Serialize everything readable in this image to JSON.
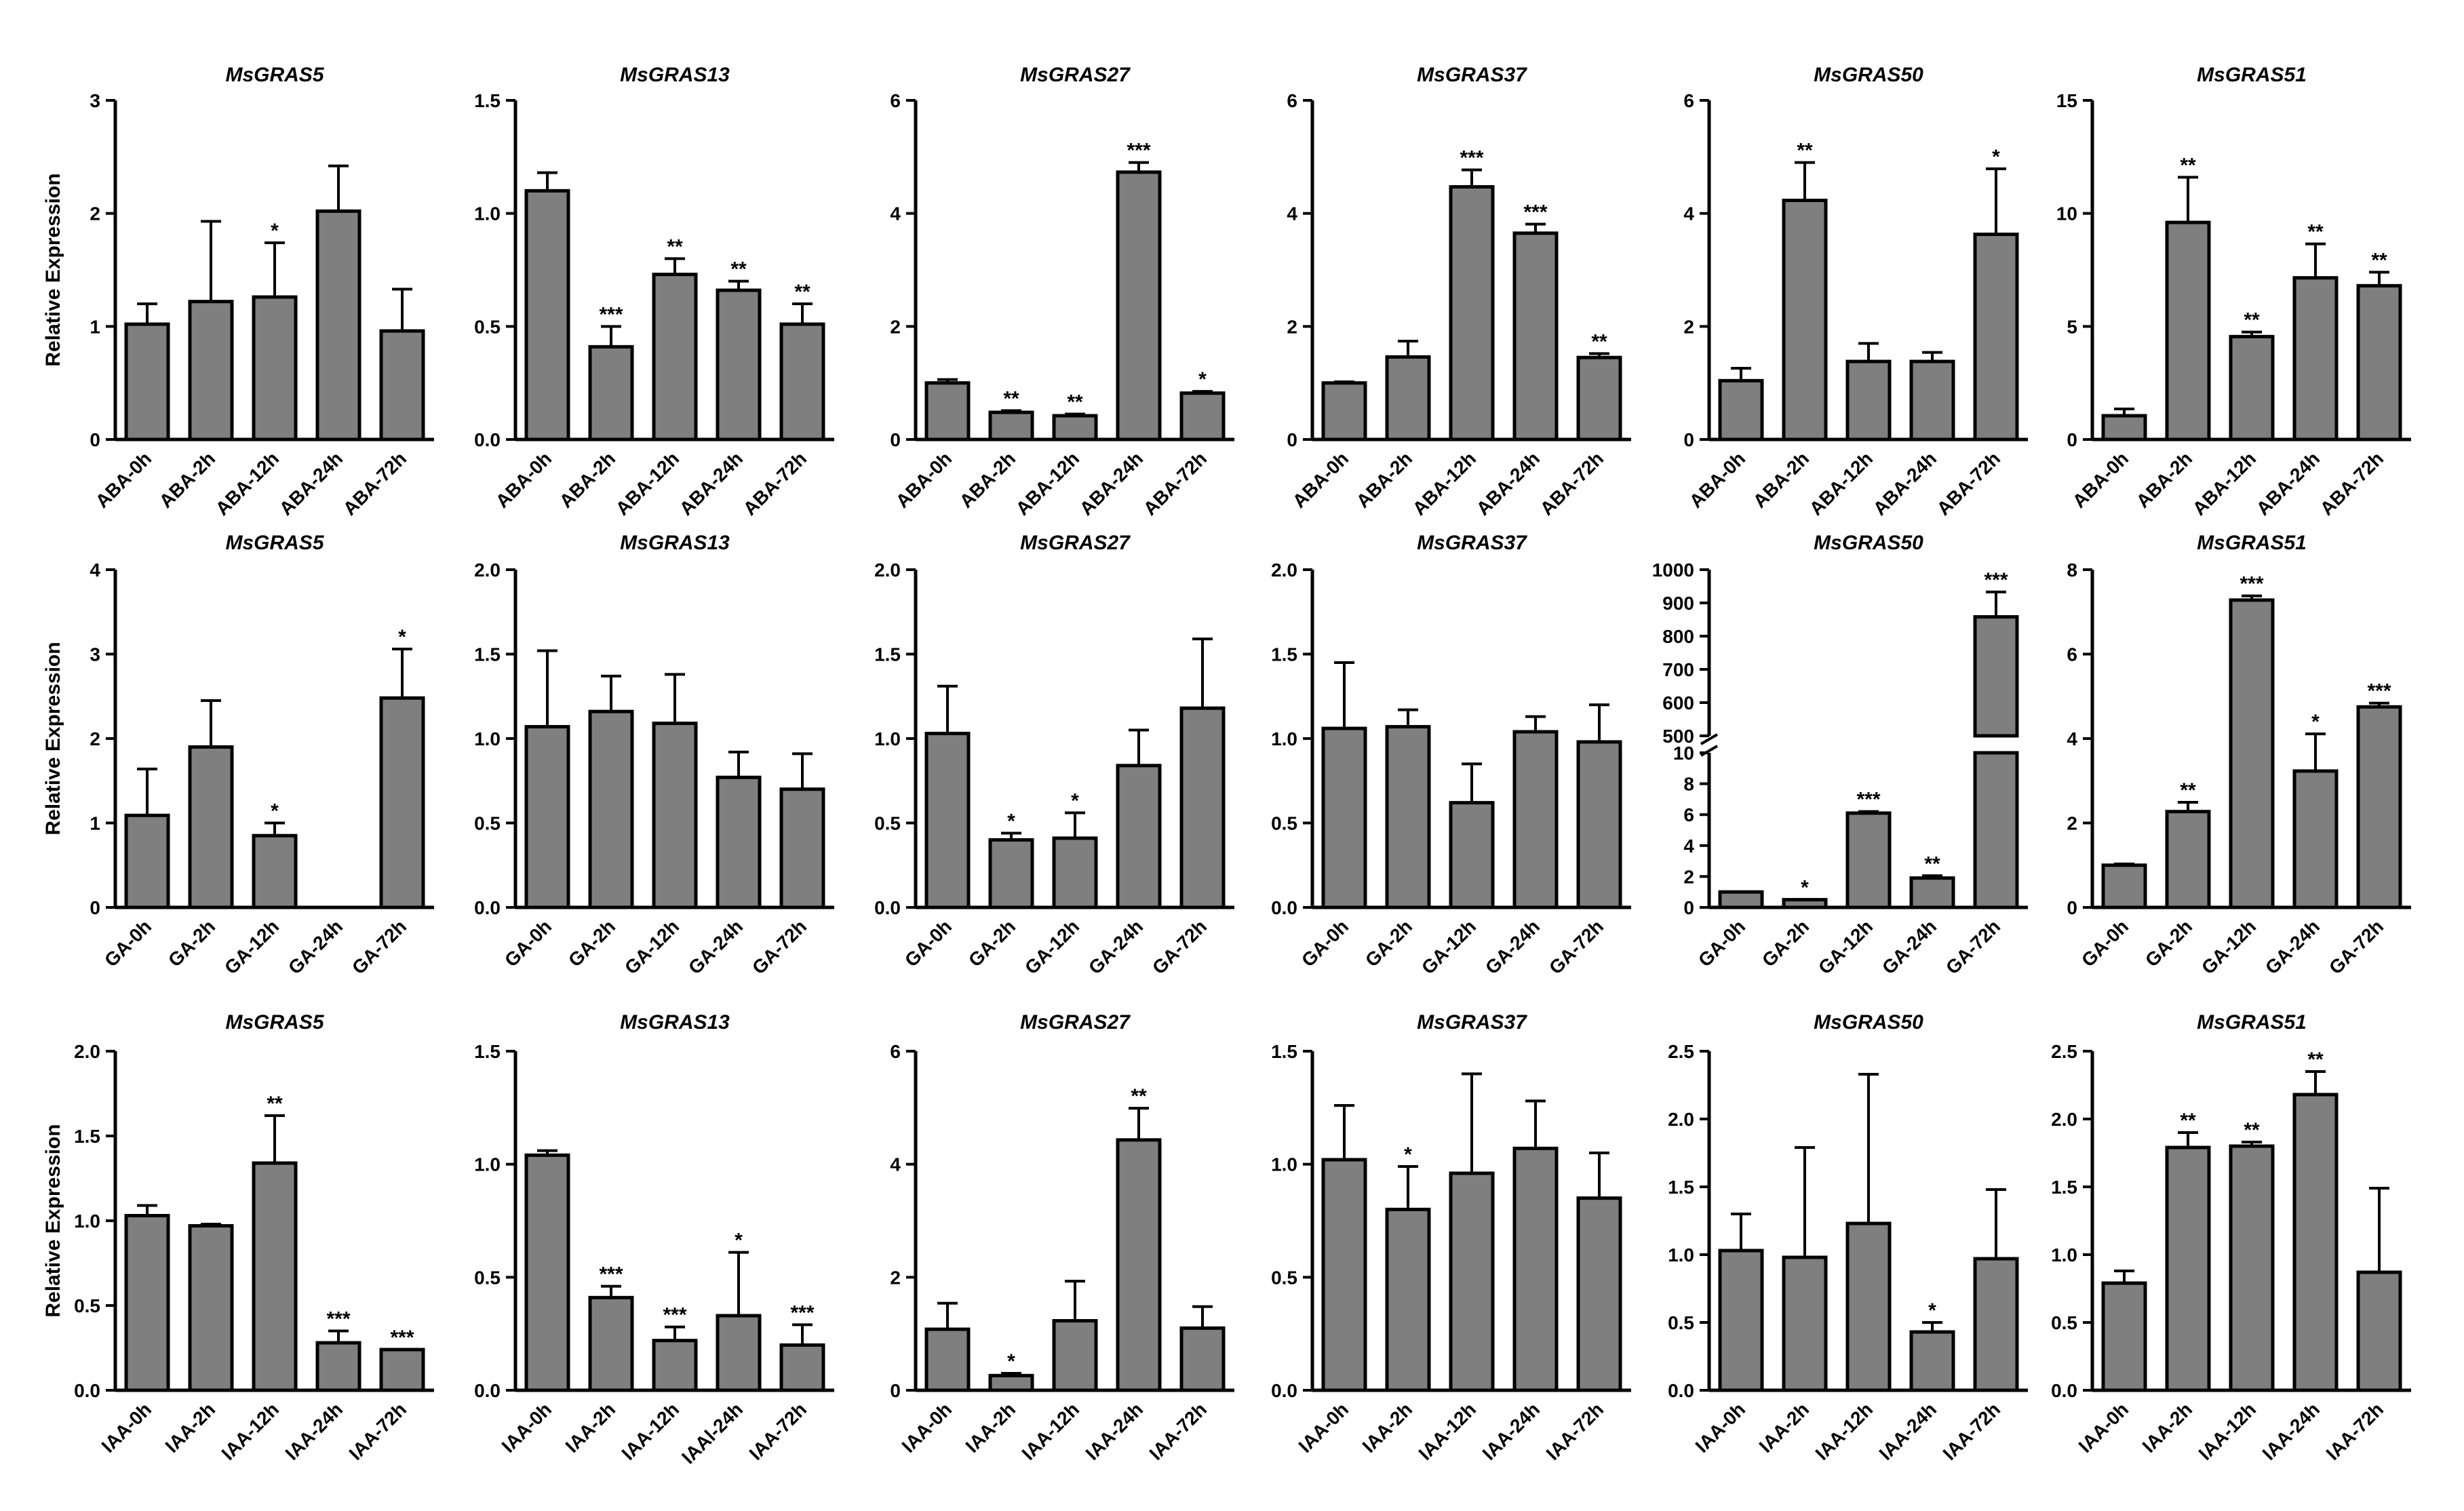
{
  "figure": {
    "ylabel": "Relative Expression"
  },
  "colors": {
    "bar_fill": "#7f7f7f",
    "bar_stroke": "#000000",
    "axis": "#000000",
    "text": "#000000"
  },
  "chart_data": [
    {
      "type": "bar",
      "row": 0,
      "col": 0,
      "title": "MsGRAS5",
      "ylabel": "Relative Expression",
      "categories": [
        "ABA-0h",
        "ABA-2h",
        "ABA-12h",
        "ABA-24h",
        "ABA-72h"
      ],
      "values": [
        1.02,
        1.22,
        1.26,
        2.02,
        0.96
      ],
      "errors": [
        0.18,
        0.71,
        0.48,
        0.4,
        0.37
      ],
      "significance": [
        "",
        "",
        "*",
        "",
        ""
      ],
      "ylim": [
        0,
        3
      ],
      "yticks": [
        "0",
        "1",
        "2",
        "3"
      ]
    },
    {
      "type": "bar",
      "row": 0,
      "col": 1,
      "title": "MsGRAS13",
      "ylabel": "",
      "categories": [
        "ABA-0h",
        "ABA-2h",
        "ABA-12h",
        "ABA-24h",
        "ABA-72h"
      ],
      "values": [
        1.1,
        0.41,
        0.73,
        0.66,
        0.51
      ],
      "errors": [
        0.08,
        0.09,
        0.07,
        0.04,
        0.09
      ],
      "significance": [
        "",
        "***",
        "**",
        "**",
        "**"
      ],
      "ylim": [
        0,
        1.5
      ],
      "yticks": [
        "0.0",
        "0.5",
        "1.0",
        "1.5"
      ]
    },
    {
      "type": "bar",
      "row": 0,
      "col": 2,
      "title": "MsGRAS27",
      "ylabel": "",
      "categories": [
        "ABA-0h",
        "ABA-2h",
        "ABA-12h",
        "ABA-24h",
        "ABA-72h"
      ],
      "values": [
        1.0,
        0.48,
        0.42,
        4.73,
        0.82
      ],
      "errors": [
        0.06,
        0.03,
        0.03,
        0.17,
        0.03
      ],
      "significance": [
        "",
        "**",
        "**",
        "***",
        "*"
      ],
      "ylim": [
        0,
        6
      ],
      "yticks": [
        "0",
        "2",
        "4",
        "6"
      ]
    },
    {
      "type": "bar",
      "row": 0,
      "col": 3,
      "title": "MsGRAS37",
      "ylabel": "",
      "categories": [
        "ABA-0h",
        "ABA-2h",
        "ABA-12h",
        "ABA-24h",
        "ABA-72h"
      ],
      "values": [
        1.0,
        1.46,
        4.47,
        3.65,
        1.45
      ],
      "errors": [
        0.02,
        0.28,
        0.3,
        0.16,
        0.07
      ],
      "significance": [
        "",
        "",
        "***",
        "***",
        "**"
      ],
      "ylim": [
        0,
        6
      ],
      "yticks": [
        "0",
        "2",
        "4",
        "6"
      ]
    },
    {
      "type": "bar",
      "row": 0,
      "col": 4,
      "title": "MsGRAS50",
      "ylabel": "",
      "categories": [
        "ABA-0h",
        "ABA-2h",
        "ABA-12h",
        "ABA-24h",
        "ABA-72h"
      ],
      "values": [
        1.04,
        4.23,
        1.38,
        1.38,
        3.63
      ],
      "errors": [
        0.22,
        0.67,
        0.32,
        0.16,
        1.16
      ],
      "significance": [
        "",
        "**",
        "",
        "",
        "*"
      ],
      "ylim": [
        0,
        6
      ],
      "yticks": [
        "0",
        "2",
        "4",
        "6"
      ]
    },
    {
      "type": "bar",
      "row": 0,
      "col": 5,
      "title": "MsGRAS51",
      "ylabel": "",
      "categories": [
        "ABA-0h",
        "ABA-2h",
        "ABA-12h",
        "ABA-24h",
        "ABA-72h"
      ],
      "values": [
        1.05,
        9.6,
        4.55,
        7.15,
        6.8
      ],
      "errors": [
        0.3,
        2.0,
        0.2,
        1.5,
        0.6
      ],
      "significance": [
        "",
        "**",
        "**",
        "**",
        "**"
      ],
      "ylim": [
        0,
        15
      ],
      "yticks": [
        "0",
        "5",
        "10",
        "15"
      ]
    },
    {
      "type": "bar",
      "row": 1,
      "col": 0,
      "title": "MsGRAS5",
      "ylabel": "Relative Expression",
      "categories": [
        "GA-0h",
        "GA-2h",
        "GA-12h",
        "GA-24h",
        "GA-72h"
      ],
      "values": [
        1.09,
        1.9,
        0.85,
        0,
        2.48
      ],
      "errors": [
        0.55,
        0.55,
        0.15,
        0,
        0.58
      ],
      "significance": [
        "",
        "",
        "*",
        "",
        "*"
      ],
      "ylim": [
        0,
        4
      ],
      "yticks": [
        "0",
        "1",
        "2",
        "3",
        "4"
      ]
    },
    {
      "type": "bar",
      "row": 1,
      "col": 1,
      "title": "MsGRAS13",
      "ylabel": "",
      "categories": [
        "GA-0h",
        "GA-2h",
        "GA-12h",
        "GA-24h",
        "GA-72h"
      ],
      "values": [
        1.07,
        1.16,
        1.09,
        0.77,
        0.7
      ],
      "errors": [
        0.45,
        0.21,
        0.29,
        0.15,
        0.21
      ],
      "significance": [
        "",
        "",
        "",
        "",
        ""
      ],
      "ylim": [
        0,
        2
      ],
      "yticks": [
        "0.0",
        "0.5",
        "1.0",
        "1.5",
        "2.0"
      ]
    },
    {
      "type": "bar",
      "row": 1,
      "col": 2,
      "title": "MsGRAS27",
      "ylabel": "",
      "categories": [
        "GA-0h",
        "GA-2h",
        "GA-12h",
        "GA-24h",
        "GA-72h"
      ],
      "values": [
        1.03,
        0.4,
        0.41,
        0.84,
        1.18
      ],
      "errors": [
        0.28,
        0.04,
        0.15,
        0.21,
        0.41
      ],
      "significance": [
        "",
        "*",
        "*",
        "",
        ""
      ],
      "ylim": [
        0,
        2
      ],
      "yticks": [
        "0.0",
        "0.5",
        "1.0",
        "1.5",
        "2.0"
      ]
    },
    {
      "type": "bar",
      "row": 1,
      "col": 3,
      "title": "MsGRAS37",
      "ylabel": "",
      "categories": [
        "GA-0h",
        "GA-2h",
        "GA-12h",
        "GA-24h",
        "GA-72h"
      ],
      "values": [
        1.06,
        1.07,
        0.62,
        1.04,
        0.98
      ],
      "errors": [
        0.39,
        0.1,
        0.23,
        0.09,
        0.22
      ],
      "significance": [
        "",
        "",
        "",
        "",
        ""
      ],
      "ylim": [
        0,
        2
      ],
      "yticks": [
        "0.0",
        "0.5",
        "1.0",
        "1.5",
        "2.0"
      ]
    },
    {
      "type": "bar",
      "row": 1,
      "col": 4,
      "title": "MsGRAS50",
      "ylabel": "",
      "broken_axis": true,
      "categories": [
        "GA-0h",
        "GA-2h",
        "GA-12h",
        "GA-24h",
        "GA-72h"
      ],
      "values": [
        1.0,
        0.5,
        6.1,
        1.9,
        858
      ],
      "errors": [
        0,
        0,
        0.1,
        0.15,
        75
      ],
      "significance": [
        "",
        "*",
        "***",
        "**",
        "***"
      ],
      "lower_ylim": [
        0,
        10
      ],
      "lower_yticks": [
        "0",
        "2",
        "4",
        "6",
        "8",
        "10"
      ],
      "upper_ylim": [
        500,
        1000
      ],
      "upper_yticks": [
        "500",
        "600",
        "700",
        "800",
        "900",
        "1000"
      ]
    },
    {
      "type": "bar",
      "row": 1,
      "col": 5,
      "title": "MsGRAS51",
      "ylabel": "",
      "categories": [
        "GA-0h",
        "GA-2h",
        "GA-12h",
        "GA-24h",
        "GA-72h"
      ],
      "values": [
        1.0,
        2.27,
        7.28,
        3.23,
        4.75
      ],
      "errors": [
        0.03,
        0.22,
        0.1,
        0.88,
        0.09
      ],
      "significance": [
        "",
        "**",
        "***",
        "*",
        "***"
      ],
      "ylim": [
        0,
        8
      ],
      "yticks": [
        "0",
        "2",
        "4",
        "6",
        "8"
      ]
    },
    {
      "type": "bar",
      "row": 2,
      "col": 0,
      "title": "MsGRAS5",
      "ylabel": "Relative Expression",
      "categories": [
        "IAA-0h",
        "IAA-2h",
        "IAA-12h",
        "IAA-24h",
        "IAA-72h"
      ],
      "values": [
        1.03,
        0.97,
        1.34,
        0.28,
        0.24
      ],
      "errors": [
        0.06,
        0.01,
        0.28,
        0.07,
        0
      ],
      "significance": [
        "",
        "",
        "**",
        "***",
        "***"
      ],
      "ylim": [
        0,
        2
      ],
      "yticks": [
        "0.0",
        "0.5",
        "1.0",
        "1.5",
        "2.0"
      ]
    },
    {
      "type": "bar",
      "row": 2,
      "col": 1,
      "title": "MsGRAS13",
      "ylabel": "",
      "categories": [
        "IAA-0h",
        "IAA-2h",
        "IAA-12h",
        "IAAl-24h",
        "IAA-72h"
      ],
      "values": [
        1.04,
        0.41,
        0.22,
        0.33,
        0.2
      ],
      "errors": [
        0.02,
        0.05,
        0.06,
        0.28,
        0.09
      ],
      "significance": [
        "",
        "***",
        "***",
        "*",
        "***"
      ],
      "ylim": [
        0,
        1.5
      ],
      "yticks": [
        "0.0",
        "0.5",
        "1.0",
        "1.5"
      ]
    },
    {
      "type": "bar",
      "row": 2,
      "col": 2,
      "title": "MsGRAS27",
      "ylabel": "",
      "categories": [
        "IAA-0h",
        "IAA-2h",
        "IAA-12h",
        "IAA-24h",
        "IAA-72h"
      ],
      "values": [
        1.08,
        0.26,
        1.23,
        4.43,
        1.1
      ],
      "errors": [
        0.46,
        0.04,
        0.7,
        0.56,
        0.38
      ],
      "significance": [
        "",
        "*",
        "",
        "**",
        ""
      ],
      "ylim": [
        0,
        6
      ],
      "yticks": [
        "0",
        "2",
        "4",
        "6"
      ]
    },
    {
      "type": "bar",
      "row": 2,
      "col": 3,
      "title": "MsGRAS37",
      "ylabel": "",
      "categories": [
        "IAA-0h",
        "IAA-2h",
        "IAA-12h",
        "IAA-24h",
        "IAA-72h"
      ],
      "values": [
        1.02,
        0.8,
        0.96,
        1.07,
        0.85
      ],
      "errors": [
        0.24,
        0.19,
        0.44,
        0.21,
        0.2
      ],
      "significance": [
        "",
        "*",
        "",
        "",
        ""
      ],
      "ylim": [
        0,
        1.5
      ],
      "yticks": [
        "0.0",
        "0.5",
        "1.0",
        "1.5"
      ]
    },
    {
      "type": "bar",
      "row": 2,
      "col": 4,
      "title": "MsGRAS50",
      "ylabel": "",
      "categories": [
        "IAA-0h",
        "IAA-2h",
        "IAA-12h",
        "IAA-24h",
        "IAA-72h"
      ],
      "values": [
        1.03,
        0.98,
        1.23,
        0.43,
        0.97
      ],
      "errors": [
        0.27,
        0.81,
        1.1,
        0.07,
        0.51
      ],
      "significance": [
        "",
        "",
        "",
        "*",
        ""
      ],
      "ylim": [
        0,
        2.5
      ],
      "yticks": [
        "0.0",
        "0.5",
        "1.0",
        "1.5",
        "2.0",
        "2.5"
      ]
    },
    {
      "type": "bar",
      "row": 2,
      "col": 5,
      "title": "MsGRAS51",
      "ylabel": "",
      "categories": [
        "IAA-0h",
        "IAA-2h",
        "IAA-12h",
        "IAA-24h",
        "IAA-72h"
      ],
      "values": [
        0.79,
        1.79,
        1.8,
        2.18,
        0.87
      ],
      "errors": [
        0.09,
        0.11,
        0.03,
        0.17,
        0.62
      ],
      "significance": [
        "",
        "**",
        "**",
        "**",
        ""
      ],
      "ylim": [
        0,
        2.5
      ],
      "yticks": [
        "0.0",
        "0.5",
        "1.0",
        "1.5",
        "2.0",
        "2.5"
      ]
    }
  ]
}
